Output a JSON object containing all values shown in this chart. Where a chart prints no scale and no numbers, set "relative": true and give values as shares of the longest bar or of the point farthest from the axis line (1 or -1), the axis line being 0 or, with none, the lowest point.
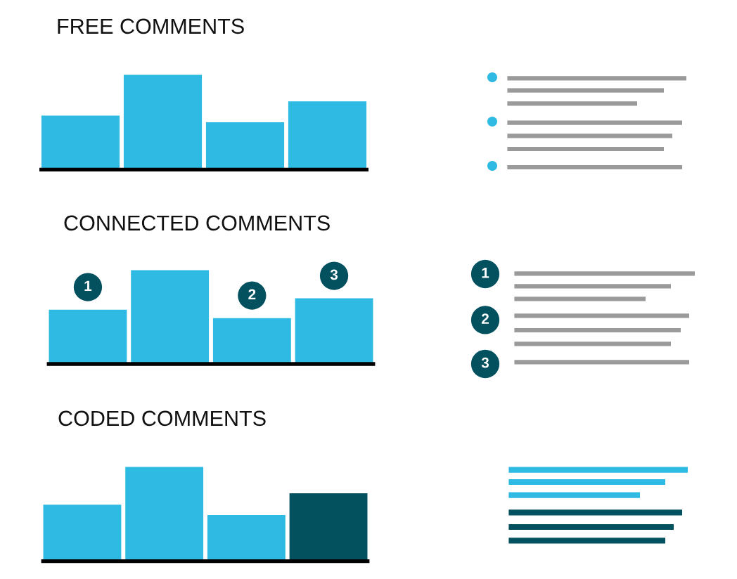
{
  "chart_data": [
    {
      "type": "bar",
      "title": "FREE COMMENTS",
      "categories": [
        null,
        null,
        null,
        null
      ],
      "values": [
        0.57,
        1,
        0.5,
        0.72
      ],
      "colors": [
        "#2ebae2",
        "#2ebae2",
        "#2ebae2",
        "#2ebae2"
      ],
      "relative": true
    },
    {
      "type": "bar",
      "title": "CONNECTED COMMENTS",
      "categories": [
        null,
        null,
        null,
        null
      ],
      "values": [
        0.58,
        1,
        0.49,
        0.7
      ],
      "colors": [
        "#2ebae2",
        "#2ebae2",
        "#2ebae2",
        "#2ebae2"
      ],
      "relative": true,
      "annotations": [
        "1",
        "2",
        "3",
        "1",
        "2",
        "3"
      ]
    },
    {
      "type": "bar",
      "title": "CODED COMMENTS",
      "categories": [
        null,
        null,
        null,
        null
      ],
      "values": [
        0.6,
        1,
        0.49,
        0.72
      ],
      "colors": [
        "#2ebae2",
        "#2ebae2",
        "#2ebae2",
        "#03515f"
      ],
      "relative": true
    }
  ]
}
